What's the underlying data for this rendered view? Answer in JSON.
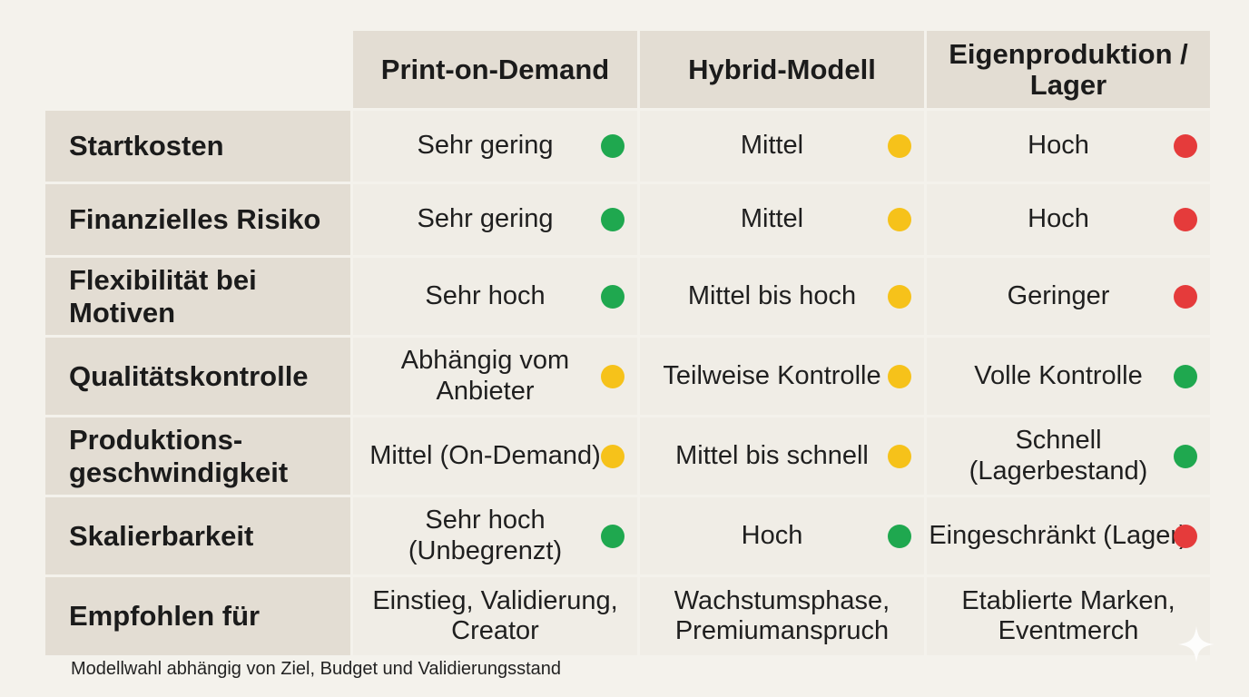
{
  "colors": {
    "green": "#1fa84f",
    "yellow": "#f6c21a",
    "red": "#e53b3b"
  },
  "table": {
    "columns": [
      "Print-on-Demand",
      "Hybrid-Modell",
      "Eigenproduktion / Lager"
    ],
    "rows": [
      {
        "label": "Startkosten",
        "cells": [
          {
            "text": "Sehr gering",
            "status": "green"
          },
          {
            "text": "Mittel",
            "status": "yellow"
          },
          {
            "text": "Hoch",
            "status": "red"
          }
        ]
      },
      {
        "label": "Finanzielles Risiko",
        "cells": [
          {
            "text": "Sehr gering",
            "status": "green"
          },
          {
            "text": "Mittel",
            "status": "yellow"
          },
          {
            "text": "Hoch",
            "status": "red"
          }
        ]
      },
      {
        "label": "Flexibilität bei Motiven",
        "cells": [
          {
            "text": "Sehr hoch",
            "status": "green"
          },
          {
            "text": "Mittel bis hoch",
            "status": "yellow"
          },
          {
            "text": "Geringer",
            "status": "red"
          }
        ]
      },
      {
        "label": "Qualitätskontrolle",
        "cells": [
          {
            "text": "Abhängig vom Anbieter",
            "status": "yellow"
          },
          {
            "text": "Teilweise Kontrolle",
            "status": "yellow"
          },
          {
            "text": "Volle Kontrolle",
            "status": "green"
          }
        ]
      },
      {
        "label": "Produktions- geschwindigkeit",
        "cells": [
          {
            "text": "Mittel (On-Demand)",
            "status": "yellow"
          },
          {
            "text": "Mittel bis schnell",
            "status": "yellow"
          },
          {
            "text": "Schnell (Lagerbestand)",
            "status": "green"
          }
        ]
      },
      {
        "label": "Skalierbarkeit",
        "cells": [
          {
            "text": "Sehr hoch (Unbegrenzt)",
            "status": "green"
          },
          {
            "text": "Hoch",
            "status": "green"
          },
          {
            "text": "Eingeschränkt (Lager)",
            "status": "red"
          }
        ]
      },
      {
        "label": "Empfohlen für",
        "cells": [
          {
            "text": "Einstieg, Validierung, Creator",
            "status": ""
          },
          {
            "text": "Wachstumsphase, Premiumanspruch",
            "status": ""
          },
          {
            "text": "Etablierte Marken, Eventmerch",
            "status": ""
          }
        ]
      }
    ]
  },
  "footnote": "Modellwahl abhängig von Ziel, Budget und Validierungsstand"
}
